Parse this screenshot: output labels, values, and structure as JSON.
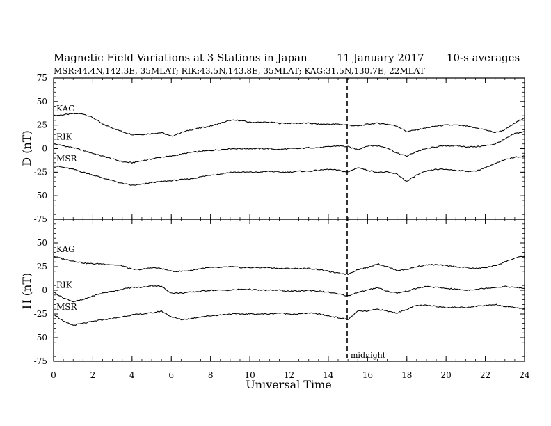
{
  "title": "Magnetic Field Variations at 3 Stations in Japan",
  "date": "11 January  2017",
  "averaging": "10-s averages",
  "subtitle": "MSR:44.4N,142.3E, 35MLAT;  RIK:43.5N,143.8E, 35MLAT;  KAG:31.5N,130.7E, 22MLAT",
  "xlabel": "Universal Time",
  "annotation": "midnight",
  "colors": {
    "line": "#000000",
    "background": "#ffffff"
  },
  "chart_data": [
    {
      "type": "line",
      "panel": "top",
      "ylabel": "D (nT)",
      "ylim": [
        -75,
        75
      ],
      "xlim": [
        0,
        24
      ],
      "yticks": [
        -75,
        -50,
        -25,
        0,
        25,
        50,
        75
      ],
      "ytick_labels": [
        "-75",
        "-50",
        "-25",
        "0",
        "25",
        "50",
        "75"
      ],
      "series": [
        {
          "name": "KAG",
          "x": [
            0,
            0.5,
            1,
            1.5,
            2,
            2.5,
            3,
            3.5,
            4,
            4.5,
            5,
            5.5,
            6,
            6.5,
            7,
            7.5,
            8,
            8.5,
            9,
            9.5,
            10,
            10.5,
            11,
            11.5,
            12,
            12.5,
            13,
            13.5,
            14,
            14.5,
            15,
            15.5,
            16,
            16.5,
            17,
            17.5,
            18,
            18.5,
            19,
            19.5,
            20,
            20.5,
            21,
            21.5,
            22,
            22.5,
            23,
            23.5,
            24
          ],
          "y": [
            35,
            36,
            37,
            37,
            33,
            26,
            22,
            18,
            15,
            15,
            16,
            17,
            13,
            17,
            20,
            22,
            24,
            27,
            30,
            30,
            28,
            28,
            28,
            27,
            27,
            27,
            27,
            26,
            26,
            26,
            25,
            24,
            26,
            27,
            26,
            24,
            18,
            20,
            22,
            24,
            25,
            25,
            24,
            22,
            20,
            17,
            20,
            27,
            33
          ]
        },
        {
          "name": "RIK",
          "x": [
            0,
            0.5,
            1,
            1.5,
            2,
            2.5,
            3,
            3.5,
            4,
            4.5,
            5,
            5.5,
            6,
            6.5,
            7,
            7.5,
            8,
            8.5,
            9,
            9.5,
            10,
            10.5,
            11,
            11.5,
            12,
            12.5,
            13,
            13.5,
            14,
            14.5,
            15,
            15.5,
            16,
            16.5,
            17,
            17.5,
            18,
            18.5,
            19,
            19.5,
            20,
            20.5,
            21,
            21.5,
            22,
            22.5,
            23,
            23.5,
            24
          ],
          "y": [
            5,
            3,
            1,
            -2,
            -5,
            -8,
            -11,
            -14,
            -15,
            -13,
            -11,
            -9,
            -8,
            -6,
            -4,
            -3,
            -2,
            -1,
            0,
            0,
            0,
            0,
            0,
            -1,
            0,
            0,
            1,
            1,
            2,
            3,
            2,
            -1,
            3,
            3,
            1,
            -5,
            -8,
            -3,
            0,
            2,
            3,
            3,
            2,
            2,
            3,
            5,
            10,
            16,
            18
          ]
        },
        {
          "name": "MSR",
          "x": [
            0,
            0.5,
            1,
            1.5,
            2,
            2.5,
            3,
            3.5,
            4,
            4.5,
            5,
            5.5,
            6,
            6.5,
            7,
            7.5,
            8,
            8.5,
            9,
            9.5,
            10,
            10.5,
            11,
            11.5,
            12,
            12.5,
            13,
            13.5,
            14,
            14.5,
            15,
            15.5,
            16,
            16.5,
            17,
            17.5,
            18,
            18.5,
            19,
            19.5,
            20,
            20.5,
            21,
            21.5,
            22,
            22.5,
            23,
            23.5,
            24
          ],
          "y": [
            -18,
            -20,
            -22,
            -25,
            -28,
            -31,
            -34,
            -37,
            -39,
            -38,
            -36,
            -35,
            -34,
            -33,
            -32,
            -30,
            -28,
            -27,
            -25,
            -25,
            -25,
            -25,
            -24,
            -25,
            -25,
            -24,
            -24,
            -23,
            -22,
            -23,
            -25,
            -20,
            -23,
            -25,
            -25,
            -27,
            -35,
            -28,
            -24,
            -22,
            -22,
            -23,
            -24,
            -24,
            -20,
            -16,
            -12,
            -9,
            -8
          ]
        }
      ],
      "series_labels": [
        "KAG",
        "RIK",
        "MSR"
      ]
    },
    {
      "type": "line",
      "panel": "bottom",
      "ylabel": "H (nT)",
      "ylim": [
        -75,
        75
      ],
      "xlim": [
        0,
        24
      ],
      "yticks": [
        -75,
        -50,
        -25,
        0,
        25,
        50,
        75
      ],
      "ytick_labels": [
        "-75",
        "-50",
        "-25",
        "0",
        "25",
        "50",
        ""
      ],
      "xticks": [
        0,
        2,
        4,
        6,
        8,
        10,
        12,
        14,
        16,
        18,
        20,
        22,
        24
      ],
      "xtick_labels": [
        "0",
        "2",
        "4",
        "6",
        "8",
        "10",
        "12",
        "14",
        "16",
        "18",
        "20",
        "22",
        "24"
      ],
      "series": [
        {
          "name": "KAG",
          "x": [
            0,
            0.5,
            1,
            1.5,
            2,
            2.5,
            3,
            3.5,
            4,
            4.5,
            5,
            5.5,
            6,
            6.5,
            7,
            7.5,
            8,
            8.5,
            9,
            9.5,
            10,
            10.5,
            11,
            11.5,
            12,
            12.5,
            13,
            13.5,
            14,
            14.5,
            15,
            15.5,
            16,
            16.5,
            17,
            17.5,
            18,
            18.5,
            19,
            19.5,
            20,
            20.5,
            21,
            21.5,
            22,
            22.5,
            23,
            23.5,
            24
          ],
          "y": [
            36,
            33,
            31,
            29,
            28,
            28,
            27,
            26,
            22,
            22,
            24,
            23,
            20,
            20,
            21,
            23,
            24,
            24,
            25,
            24,
            24,
            24,
            24,
            23,
            23,
            23,
            23,
            22,
            20,
            18,
            17,
            22,
            24,
            28,
            25,
            21,
            22,
            25,
            27,
            27,
            26,
            25,
            24,
            23,
            24,
            26,
            30,
            34,
            36
          ]
        },
        {
          "name": "RIK",
          "x": [
            0,
            0.5,
            1,
            1.5,
            2,
            2.5,
            3,
            3.5,
            4,
            4.5,
            5,
            5.5,
            6,
            6.5,
            7,
            7.5,
            8,
            8.5,
            9,
            9.5,
            10,
            10.5,
            11,
            11.5,
            12,
            12.5,
            13,
            13.5,
            14,
            14.5,
            15,
            15.5,
            16,
            16.5,
            17,
            17.5,
            18,
            18.5,
            19,
            19.5,
            20,
            20.5,
            21,
            21.5,
            22,
            22.5,
            23,
            23.5,
            24
          ],
          "y": [
            -2,
            -8,
            -12,
            -10,
            -6,
            -3,
            -1,
            1,
            3,
            3,
            5,
            4,
            -3,
            -3,
            -2,
            -1,
            0,
            0,
            0,
            1,
            1,
            0,
            0,
            0,
            -1,
            -1,
            0,
            -1,
            -2,
            -4,
            -6,
            -2,
            0,
            3,
            -1,
            -3,
            -1,
            2,
            4,
            3,
            2,
            1,
            0,
            1,
            2,
            3,
            4,
            3,
            2
          ]
        },
        {
          "name": "MSR",
          "x": [
            0,
            0.5,
            1,
            1.5,
            2,
            2.5,
            3,
            3.5,
            4,
            4.5,
            5,
            5.5,
            6,
            6.5,
            7,
            7.5,
            8,
            8.5,
            9,
            9.5,
            10,
            10.5,
            11,
            11.5,
            12,
            12.5,
            13,
            13.5,
            14,
            14.5,
            15,
            15.5,
            16,
            16.5,
            17,
            17.5,
            18,
            18.5,
            19,
            19.5,
            20,
            20.5,
            21,
            21.5,
            22,
            22.5,
            23,
            23.5,
            24
          ],
          "y": [
            -25,
            -33,
            -37,
            -35,
            -33,
            -31,
            -30,
            -28,
            -26,
            -25,
            -24,
            -22,
            -28,
            -31,
            -30,
            -28,
            -27,
            -26,
            -25,
            -25,
            -25,
            -25,
            -25,
            -24,
            -25,
            -25,
            -24,
            -25,
            -27,
            -29,
            -31,
            -22,
            -22,
            -20,
            -22,
            -24,
            -20,
            -16,
            -16,
            -17,
            -18,
            -18,
            -18,
            -17,
            -16,
            -15,
            -17,
            -18,
            -20
          ]
        }
      ],
      "series_labels": [
        "KAG",
        "RIK",
        "MSR"
      ]
    }
  ]
}
